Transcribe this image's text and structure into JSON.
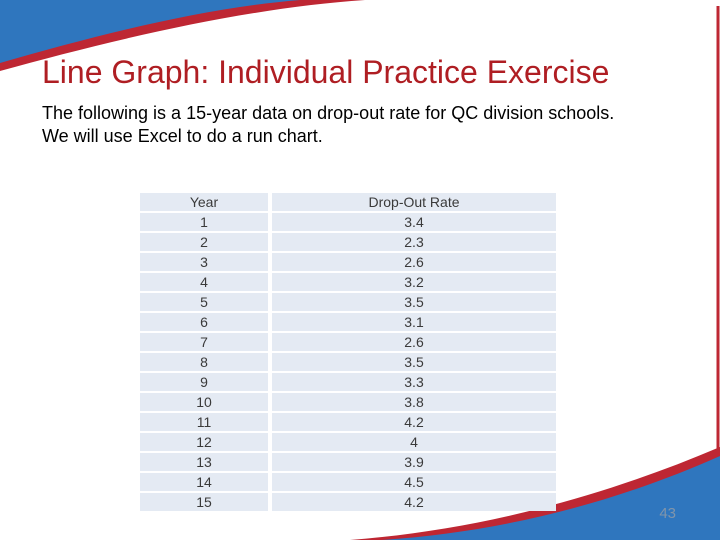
{
  "slide": {
    "title": "Line Graph: Individual Practice Exercise",
    "body_line1": "The following is a 15-year data on drop-out rate for QC division schools.",
    "body_line2": "We will use Excel to do a run chart.",
    "page_number": "43"
  },
  "table": {
    "columns": [
      "Year",
      "Drop-Out Rate"
    ],
    "rows": [
      [
        "1",
        "3.4"
      ],
      [
        "2",
        "2.3"
      ],
      [
        "3",
        "2.6"
      ],
      [
        "4",
        "3.2"
      ],
      [
        "5",
        "3.5"
      ],
      [
        "6",
        "3.1"
      ],
      [
        "7",
        "2.6"
      ],
      [
        "8",
        "3.5"
      ],
      [
        "9",
        "3.3"
      ],
      [
        "10",
        "3.8"
      ],
      [
        "11",
        "4.2"
      ],
      [
        "12",
        "4"
      ],
      [
        "13",
        "3.9"
      ],
      [
        "14",
        "4.5"
      ],
      [
        "15",
        "4.2"
      ]
    ]
  },
  "colors": {
    "accent_blue": "#2F76BE",
    "accent_red": "#BE2733",
    "title_red": "#AF1E23",
    "table_row_bg": "#E4EAF3",
    "page_number_gray": "#8095AB"
  }
}
